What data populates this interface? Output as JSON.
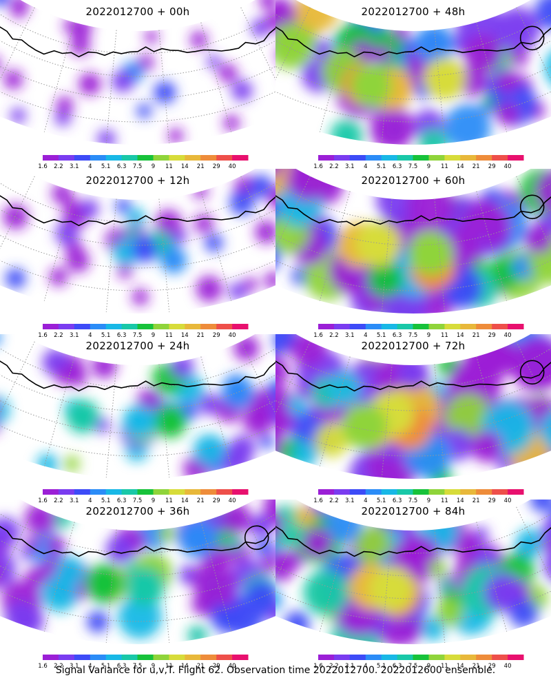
{
  "caption": "Signal Variance for u,v,T. Flight 62. Observation time 2022012700. 2022012600 ensemble.",
  "colorbar": {
    "labels": [
      "1.6",
      "2.2",
      "3.1",
      "4",
      "5.1",
      "6.3",
      "7.5",
      "9",
      "11",
      "14",
      "21",
      "29",
      "40"
    ],
    "colors": [
      "#9b1fd6",
      "#7a3cf0",
      "#3d4bf7",
      "#2b8cf7",
      "#18b8e6",
      "#19c8a8",
      "#17c23a",
      "#8fd43a",
      "#d7dc3a",
      "#e8b83a",
      "#ee8c3a",
      "#ee4f4a",
      "#e8106e"
    ]
  },
  "chart_data": [
    {
      "type": "heatmap",
      "title": "2022012700 + 00h",
      "lead_hours": 0,
      "coverage": 0.18,
      "max_level": 3,
      "circle": false
    },
    {
      "type": "heatmap",
      "title": "2022012700 + 12h",
      "lead_hours": 12,
      "coverage": 0.32,
      "max_level": 5,
      "circle": false
    },
    {
      "type": "heatmap",
      "title": "2022012700 + 24h",
      "lead_hours": 24,
      "coverage": 0.55,
      "max_level": 7,
      "circle": false
    },
    {
      "type": "heatmap",
      "title": "2022012700 + 36h",
      "lead_hours": 36,
      "coverage": 0.75,
      "max_level": 8,
      "circle": true
    },
    {
      "type": "heatmap",
      "title": "2022012700 + 48h",
      "lead_hours": 48,
      "coverage": 0.85,
      "max_level": 10,
      "circle": true
    },
    {
      "type": "heatmap",
      "title": "2022012700 + 60h",
      "lead_hours": 60,
      "coverage": 0.95,
      "max_level": 10,
      "circle": true
    },
    {
      "type": "heatmap",
      "title": "2022012700 + 72h",
      "lead_hours": 72,
      "coverage": 0.97,
      "max_level": 10,
      "circle": true
    },
    {
      "type": "heatmap",
      "title": "2022012700 + 84h",
      "lead_hours": 84,
      "coverage": 0.98,
      "max_level": 11,
      "circle": false
    }
  ]
}
